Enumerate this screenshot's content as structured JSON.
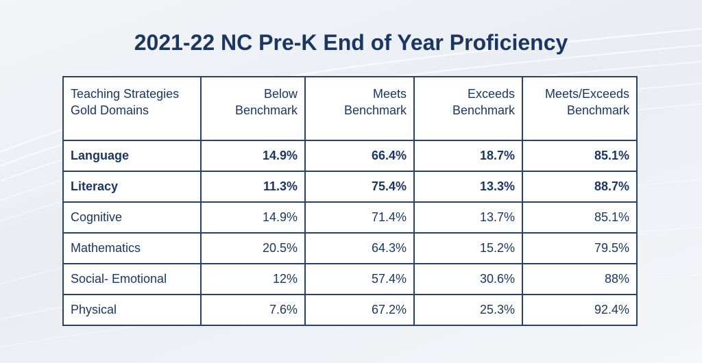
{
  "title": "2021-22 NC Pre-K End of Year Proficiency",
  "chart_data": {
    "type": "table",
    "title": "2021-22 NC Pre-K End of Year Proficiency",
    "columns": [
      "Teaching Strategies Gold Domains",
      "Below Benchmark",
      "Meets Benchmark",
      "Exceeds Benchmark",
      "Meets/Exceeds Benchmark"
    ],
    "rows": [
      {
        "domain": "Language",
        "bold": true,
        "values": [
          "14.9%",
          "66.4%",
          "18.7%",
          "85.1%"
        ]
      },
      {
        "domain": "Literacy",
        "bold": true,
        "values": [
          "11.3%",
          "75.4%",
          "13.3%",
          "88.7%"
        ]
      },
      {
        "domain": "Cognitive",
        "bold": false,
        "values": [
          "14.9%",
          "71.4%",
          "13.7%",
          "85.1%"
        ]
      },
      {
        "domain": "Mathematics",
        "bold": false,
        "values": [
          "20.5%",
          "64.3%",
          "15.2%",
          "79.5%"
        ]
      },
      {
        "domain": "Social- Emotional",
        "bold": false,
        "values": [
          "12%",
          "57.4%",
          "30.6%",
          "88%"
        ]
      },
      {
        "domain": "Physical",
        "bold": false,
        "values": [
          "7.6%",
          "67.2%",
          "25.3%",
          "92.4%"
        ]
      }
    ]
  },
  "colors": {
    "text": "#1b3761",
    "border": "#25426f",
    "background": "#eef1f5"
  }
}
